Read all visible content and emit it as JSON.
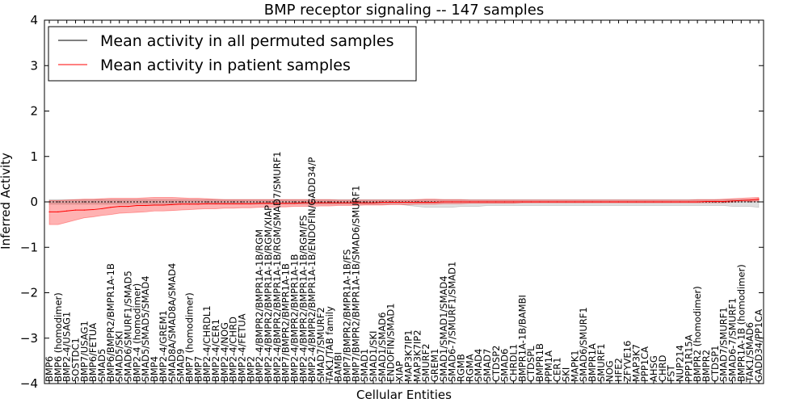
{
  "chart_data": {
    "type": "line",
    "title": "BMP receptor signaling -- 147 samples",
    "xlabel": "Cellular Entities",
    "ylabel": "Inferred Activity",
    "ylim": [
      -4,
      4
    ],
    "yticks": [
      -4,
      -3,
      -2,
      -1,
      0,
      1,
      2,
      3,
      4
    ],
    "grid": false,
    "legend_position": "top-left",
    "categories": [
      "BMP6",
      "BMP6 (homodimer)",
      "BMP2-4/USAG1",
      "SOSTDC1",
      "BMP7/USAG1",
      "BMP6/FETUA",
      "SMAD5",
      "BMP6/BMPR2/BMPR1A-1B",
      "SMAD5/SKI",
      "SMAD6/SMURF1/SMAD5",
      "BMP2-4 (homodimer)",
      "SMAD5/SMAD5/SMAD4",
      "BMP4",
      "BMP2-4/GREM1",
      "SMAD8A/SMAD8A/SMAD4",
      "SMAD9",
      "BMP7 (homodimer)",
      "BMP7",
      "BMP2-4/CHRDL1",
      "BMP2-4/CER1",
      "BMP2-4/NOG",
      "BMP2-4/CHRD",
      "BMP2-4/FETUA",
      "BMP2",
      "BMP2-4/BMPR2/BMPR1A-1B/RGM",
      "BMP2-4/BMPR2/BMPR1A-1B/RGM/XIAP",
      "BMP2-4/BMPR2/BMPR1A-1B/RGM/SMAD7/SMURF1",
      "BMP7/BMPR2/BMPR1A-1B",
      "BMP2-4/BMPR2/BMPR1A-1B",
      "BMP2-4/BMPR2/BMPR1A-1B/RGM/FS",
      "BMP2-4/BMPR2/BMPR1A-1B/ENDOFIN/GADD34/P",
      "SMAD7/SMURF2",
      "TAK1/TAB family",
      "BAMBI",
      "BMP7/BMPR2/BMPR1A-1B/FS",
      "BMP7/BMPR2/BMPR1A-1B/SMAD6/SMURF1",
      "SMAD1",
      "SMAD1/SKI",
      "SMAD1/SMAD6",
      "ENDOFIN/SMAD1",
      "XIAP",
      "MAP3K7IP1",
      "MAP3K7IP2",
      "SMURF2",
      "GREM1",
      "SMAD1/SMAD1/SMAD4",
      "SMAD6-7/SMURF1/SMAD1",
      "RGMB",
      "RGMA",
      "SMAD4",
      "SMAD7",
      "CTDSP2",
      "SMAD6",
      "CHRDL1",
      "BMPR1A-1B/BAMBI",
      "CTDSPL",
      "BMPR1B",
      "PPM1A",
      "CER1",
      "SKI",
      "MAPK1",
      "SMAD6/SMURF1",
      "BMPR1A",
      "SMURF1",
      "NOG",
      "HFE2",
      "ZFYVE16",
      "MAP3K7",
      "PPP1CA",
      "AHSG",
      "CHRD",
      "FST",
      "NUP214",
      "PPP1R15A",
      "BMPR2 (homodimer)",
      "BMPR2",
      "CTDSP1",
      "SMAD7/SMURF1",
      "SMAD6-7/SMURF1",
      "BMPR1A-1B (homodimer)",
      "TAK1/SMAD6",
      "GADD34/PP1CA"
    ],
    "series": [
      {
        "name": "Mean activity in all permuted samples",
        "color": "#000000",
        "values": [
          0,
          0,
          0,
          0,
          0,
          0,
          0,
          0,
          0,
          0,
          0,
          0,
          0,
          0,
          0,
          0,
          0,
          0,
          0,
          0,
          0,
          0,
          0,
          0,
          0,
          0,
          0,
          0,
          0,
          0,
          0,
          0,
          0,
          0,
          0,
          0,
          0,
          0,
          0,
          0,
          0,
          0,
          0,
          0,
          0,
          0,
          0,
          0,
          0,
          0,
          0,
          0,
          0,
          0,
          0,
          0,
          0,
          0,
          0,
          0,
          0,
          0,
          0,
          0,
          0,
          0,
          0,
          0,
          0,
          0,
          0,
          0,
          0,
          0,
          0,
          0,
          0,
          0,
          0,
          0,
          0,
          0
        ],
        "band_color": "#808080",
        "lower": [
          -0.05,
          -0.05,
          -0.05,
          -0.05,
          -0.05,
          -0.05,
          -0.05,
          -0.05,
          -0.05,
          -0.05,
          -0.05,
          -0.05,
          -0.05,
          -0.05,
          -0.05,
          -0.05,
          -0.05,
          -0.05,
          -0.05,
          -0.05,
          -0.05,
          -0.05,
          -0.05,
          -0.05,
          -0.05,
          -0.05,
          -0.05,
          -0.05,
          -0.05,
          -0.05,
          -0.05,
          -0.05,
          -0.05,
          -0.05,
          -0.05,
          -0.05,
          -0.05,
          -0.05,
          -0.05,
          -0.05,
          -0.05,
          -0.08,
          -0.1,
          -0.12,
          -0.12,
          -0.12,
          -0.12,
          -0.1,
          -0.1,
          -0.1,
          -0.08,
          -0.08,
          -0.08,
          -0.08,
          -0.08,
          -0.08,
          -0.08,
          -0.08,
          -0.08,
          -0.08,
          -0.08,
          -0.08,
          -0.08,
          -0.08,
          -0.08,
          -0.08,
          -0.08,
          -0.08,
          -0.08,
          -0.08,
          -0.08,
          -0.08,
          -0.08,
          -0.08,
          -0.08,
          -0.08,
          -0.08,
          -0.08,
          -0.1,
          -0.1,
          -0.1,
          -0.12
        ],
        "upper": [
          0.05,
          0.05,
          0.05,
          0.05,
          0.05,
          0.05,
          0.05,
          0.05,
          0.05,
          0.05,
          0.05,
          0.05,
          0.05,
          0.05,
          0.05,
          0.05,
          0.05,
          0.05,
          0.05,
          0.05,
          0.05,
          0.05,
          0.05,
          0.05,
          0.05,
          0.05,
          0.05,
          0.05,
          0.05,
          0.05,
          0.05,
          0.05,
          0.05,
          0.05,
          0.05,
          0.05,
          0.05,
          0.05,
          0.05,
          0.05,
          0.05,
          0.05,
          0.05,
          0.05,
          0.05,
          0.05,
          0.05,
          0.05,
          0.05,
          0.05,
          0.05,
          0.05,
          0.05,
          0.05,
          0.05,
          0.05,
          0.05,
          0.05,
          0.05,
          0.05,
          0.05,
          0.05,
          0.05,
          0.05,
          0.05,
          0.05,
          0.05,
          0.05,
          0.05,
          0.05,
          0.05,
          0.05,
          0.05,
          0.05,
          0.05,
          0.05,
          0.05,
          0.05,
          0.05,
          0.05,
          0.05,
          0.05
        ]
      },
      {
        "name": "Mean activity in patient samples",
        "color": "#ff0000",
        "values": [
          -0.22,
          -0.22,
          -0.2,
          -0.18,
          -0.18,
          -0.17,
          -0.15,
          -0.12,
          -0.1,
          -0.1,
          -0.08,
          -0.08,
          -0.07,
          -0.07,
          -0.06,
          -0.05,
          -0.05,
          -0.05,
          -0.04,
          -0.04,
          -0.04,
          -0.04,
          -0.04,
          -0.04,
          -0.03,
          -0.03,
          -0.03,
          -0.03,
          -0.03,
          -0.02,
          -0.02,
          -0.02,
          -0.02,
          -0.02,
          -0.02,
          -0.02,
          -0.02,
          -0.02,
          -0.01,
          -0.01,
          -0.01,
          -0.01,
          -0.01,
          -0.01,
          -0.01,
          0,
          0,
          0,
          0,
          0,
          0,
          0,
          0,
          0,
          0,
          0,
          0,
          0,
          0,
          0,
          0,
          0,
          0,
          0,
          0,
          0,
          0,
          0,
          0,
          0,
          0,
          0,
          0,
          0,
          0,
          0.01,
          0.01,
          0.01,
          0.02,
          0.03,
          0.04,
          0.06
        ],
        "band_color": "#ff0000",
        "lower": [
          -0.5,
          -0.5,
          -0.45,
          -0.4,
          -0.35,
          -0.33,
          -0.3,
          -0.28,
          -0.25,
          -0.24,
          -0.23,
          -0.22,
          -0.2,
          -0.2,
          -0.19,
          -0.18,
          -0.17,
          -0.16,
          -0.15,
          -0.15,
          -0.14,
          -0.14,
          -0.13,
          -0.13,
          -0.12,
          -0.12,
          -0.11,
          -0.11,
          -0.1,
          -0.1,
          -0.1,
          -0.09,
          -0.09,
          -0.08,
          -0.08,
          -0.08,
          -0.07,
          -0.07,
          -0.07,
          -0.06,
          -0.06,
          -0.06,
          -0.05,
          -0.05,
          -0.05,
          -0.04,
          -0.04,
          -0.04,
          -0.03,
          -0.03,
          -0.03,
          -0.03,
          -0.03,
          -0.03,
          -0.02,
          -0.02,
          -0.02,
          -0.02,
          -0.02,
          -0.02,
          -0.02,
          -0.02,
          -0.02,
          -0.02,
          -0.02,
          -0.02,
          -0.02,
          -0.02,
          -0.02,
          -0.02,
          -0.02,
          -0.02,
          -0.02,
          -0.02,
          -0.02,
          -0.02,
          -0.02,
          -0.02,
          -0.01,
          0,
          0.01,
          0.02
        ],
        "upper": [
          0.03,
          0.03,
          0.04,
          0.05,
          0.06,
          0.06,
          0.07,
          0.08,
          0.08,
          0.08,
          0.08,
          0.09,
          0.1,
          0.1,
          0.1,
          0.09,
          0.08,
          0.08,
          0.07,
          0.06,
          0.05,
          0.05,
          0.05,
          0.05,
          0.05,
          0.05,
          0.05,
          0.05,
          0.05,
          0.05,
          0.05,
          0.05,
          0.05,
          0.04,
          0.04,
          0.04,
          0.04,
          0.04,
          0.04,
          0.04,
          0.04,
          0.04,
          0.05,
          0.06,
          0.06,
          0.05,
          0.05,
          0.05,
          0.04,
          0.04,
          0.04,
          0.04,
          0.04,
          0.04,
          0.04,
          0.04,
          0.04,
          0.04,
          0.04,
          0.04,
          0.04,
          0.04,
          0.04,
          0.04,
          0.04,
          0.04,
          0.04,
          0.04,
          0.04,
          0.04,
          0.04,
          0.04,
          0.04,
          0.04,
          0.05,
          0.05,
          0.05,
          0.06,
          0.07,
          0.08,
          0.09,
          0.1
        ]
      }
    ]
  }
}
